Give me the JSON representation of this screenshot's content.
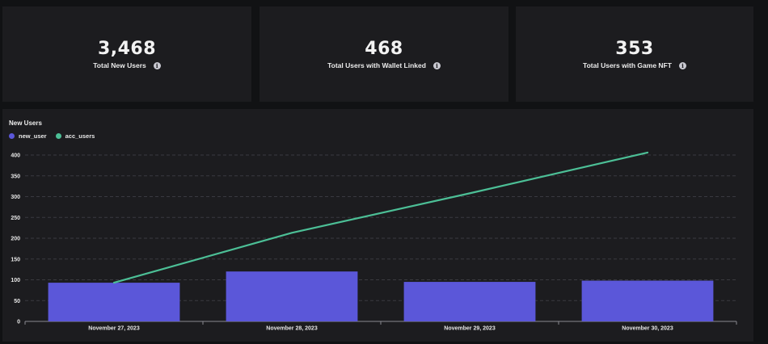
{
  "kpis": [
    {
      "value": "3,468",
      "label": "Total New Users",
      "icon": "info-icon"
    },
    {
      "value": "468",
      "label": "Total Users with Wallet Linked",
      "icon": "info-icon"
    },
    {
      "value": "353",
      "label": "Total Users with Game NFT",
      "icon": "info-icon"
    }
  ],
  "colors": {
    "background": "#111214",
    "card": "#1c1c1f",
    "bar": "#5b57d9",
    "line": "#4cbf96",
    "grid": "#3a3a40"
  },
  "chart_data": {
    "type": "bar",
    "title": "New Users",
    "xlabel": "",
    "ylabel": "",
    "ylim": [
      0,
      400
    ],
    "yticks": [
      0,
      50,
      100,
      150,
      200,
      250,
      300,
      350,
      400
    ],
    "grid": true,
    "legend_position": "top-left",
    "categories": [
      "November 27, 2023",
      "November 28, 2023",
      "November 29, 2023",
      "November 30, 2023"
    ],
    "series": [
      {
        "name": "new_user",
        "type": "bar",
        "color": "#5b57d9",
        "values": [
          93,
          120,
          95,
          98
        ]
      },
      {
        "name": "acc_users",
        "type": "line",
        "color": "#4cbf96",
        "values": [
          93,
          213,
          308,
          406
        ]
      }
    ]
  }
}
